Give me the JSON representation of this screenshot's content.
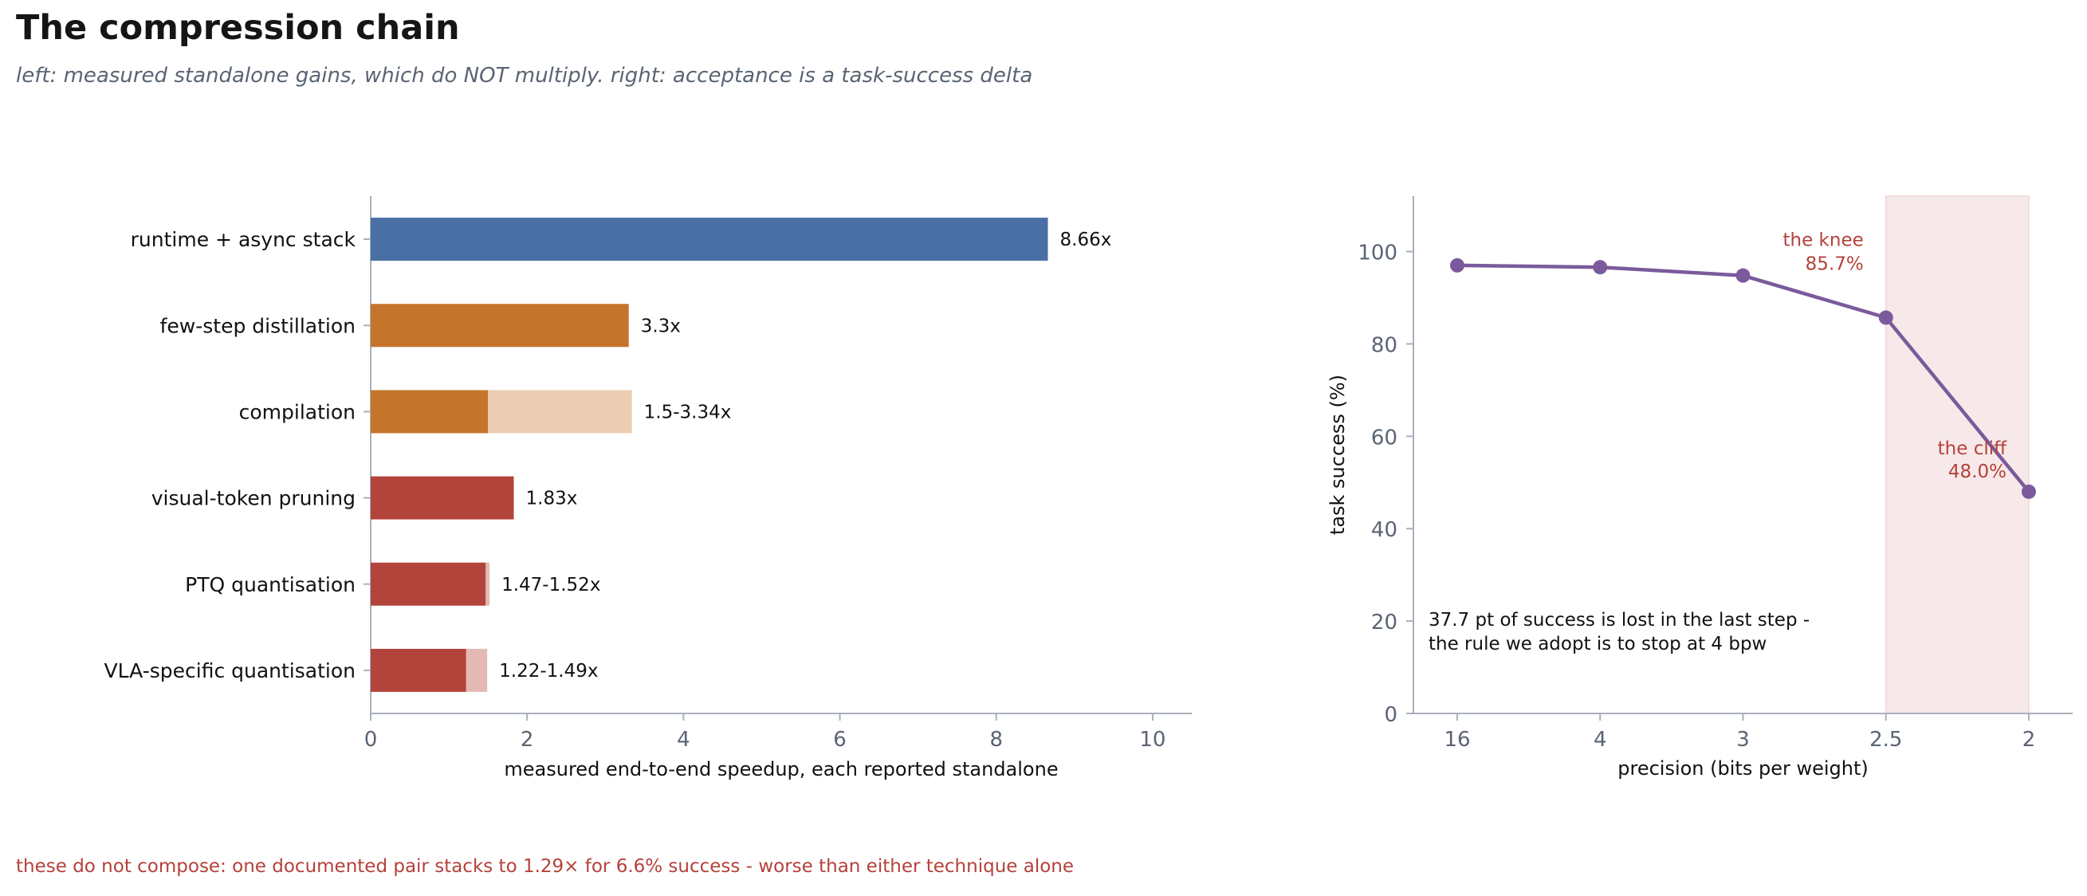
{
  "title": "The compression chain",
  "subtitle": "left: measured standalone gains, which do NOT multiply.  right: acceptance is a task-success delta",
  "footnote": "these do not compose: one documented pair stacks to 1.29× for 6.6% success - worse than either technique alone",
  "chart_data": [
    {
      "type": "bar",
      "orientation": "horizontal",
      "categories": [
        "runtime + async stack",
        "few-step distillation",
        "compilation",
        "visual-token pruning",
        "PTQ quantisation",
        "VLA-specific quantisation"
      ],
      "low": [
        8.66,
        3.3,
        1.5,
        1.83,
        1.47,
        1.22
      ],
      "high": [
        8.66,
        3.3,
        3.34,
        1.83,
        1.52,
        1.49
      ],
      "value_labels": [
        "8.66x",
        "3.3x",
        "1.5-3.34x",
        "1.83x",
        "1.47-1.52x",
        "1.22-1.49x"
      ],
      "colors": [
        "#4a6fa5",
        "#c5742c",
        "#c5742c",
        "#b3443c",
        "#b3443c",
        "#b3443c"
      ],
      "range_colors": [
        "#4a6fa5",
        "#c5742c",
        "#eccdb3",
        "#b3443c",
        "#e4b9b4",
        "#e4b9b4"
      ],
      "xlabel": "measured end-to-end speedup, each reported standalone",
      "ylabel": "",
      "xlim": [
        0,
        10.5
      ],
      "xticks": [
        0,
        2,
        4,
        6,
        8,
        10
      ],
      "grid": false
    },
    {
      "type": "line",
      "x": [
        "16",
        "4",
        "3",
        "2.5",
        "2"
      ],
      "series": [
        {
          "values": [
            97.0,
            96.6,
            94.8,
            85.7,
            48.0
          ],
          "color": "#7a5a9c"
        }
      ],
      "xlabel": "precision (bits per weight)",
      "ylabel": "task success (%)",
      "ylim": [
        0,
        112
      ],
      "yticks": [
        0,
        20,
        40,
        60,
        80,
        100
      ],
      "grid": false,
      "shaded_region": {
        "x_from": "2.5",
        "x_to": "2",
        "color": "#f7e9e9"
      },
      "annotations": [
        {
          "at": "2.5",
          "lines": [
            "the knee",
            "85.7%"
          ],
          "color": "#b5413b"
        },
        {
          "at": "2",
          "lines": [
            "the cliff",
            "48.0%"
          ],
          "color": "#b5413b"
        }
      ],
      "note_lines": [
        "37.7 pt of success is lost in the last step -",
        "the rule we adopt is to stop at 4 bpw"
      ]
    }
  ]
}
